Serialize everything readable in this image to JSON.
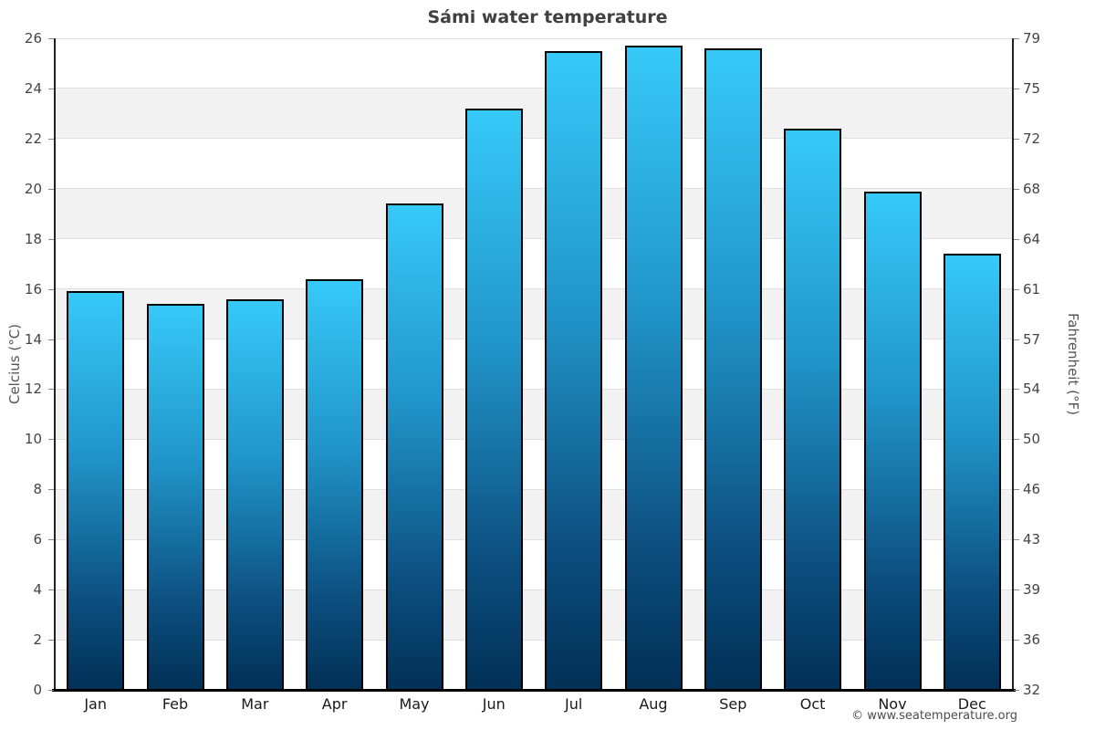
{
  "chart_data": {
    "type": "bar",
    "title": "Sámi water temperature",
    "ylabel_left": "Celcius (°C)",
    "ylabel_right": "Fahrenheit (°F)",
    "footer": "© www.seatemperature.org",
    "categories": [
      "Jan",
      "Feb",
      "Mar",
      "Apr",
      "May",
      "Jun",
      "Jul",
      "Aug",
      "Sep",
      "Oct",
      "Nov",
      "Dec"
    ],
    "values": [
      15.9,
      15.4,
      15.6,
      16.4,
      19.4,
      23.2,
      25.5,
      25.7,
      25.6,
      22.4,
      19.9,
      17.4
    ],
    "ylim": [
      0,
      26
    ],
    "tick_step": 2,
    "celsius_ticks": [
      0,
      2,
      4,
      6,
      8,
      10,
      12,
      14,
      16,
      18,
      20,
      22,
      24,
      26
    ],
    "fahrenheit_ticks": [
      32,
      36,
      39,
      43,
      46,
      50,
      54,
      57,
      61,
      64,
      68,
      72,
      75,
      79
    ],
    "grid": true,
    "legend_position": "none",
    "colors": {
      "bar_gradient_top": "#36c9f8",
      "bar_gradient_mid1": "#2196cb",
      "bar_gradient_mid2": "#0c4e7e",
      "bar_gradient_bottom": "#013056",
      "bar_border": "#000000",
      "band": "#f2f2f2",
      "gridline": "#e0e0e0",
      "axis": "#222222",
      "x_axis": "#000000"
    }
  }
}
